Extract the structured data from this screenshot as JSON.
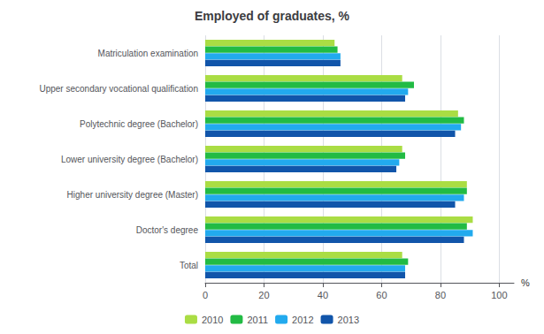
{
  "chart_data": {
    "type": "bar",
    "orientation": "horizontal",
    "title": "Employed of graduates, %",
    "xlabel": "%",
    "categories": [
      "Total",
      "Doctor's degree",
      "Higher university degree (Master)",
      "Lower university degree (Bachelor)",
      "Polytechnic degree (Bachelor)",
      "Upper secondary vocational qualification",
      "Matriculation examination"
    ],
    "series": [
      {
        "name": "2010",
        "color": "#aadd44",
        "values": [
          67,
          91,
          89,
          67,
          86,
          67,
          44
        ]
      },
      {
        "name": "2011",
        "color": "#22bb44",
        "values": [
          69,
          89,
          89,
          68,
          88,
          71,
          45
        ]
      },
      {
        "name": "2012",
        "color": "#22aaee",
        "values": [
          68,
          91,
          88,
          66,
          87,
          69,
          46
        ]
      },
      {
        "name": "2013",
        "color": "#1155aa",
        "values": [
          68,
          88,
          85,
          65,
          85,
          68,
          46
        ]
      }
    ],
    "xlim": [
      0,
      105
    ],
    "xticks": [
      0,
      20,
      40,
      60,
      80,
      100
    ],
    "grid": true,
    "legend": "bottom"
  }
}
